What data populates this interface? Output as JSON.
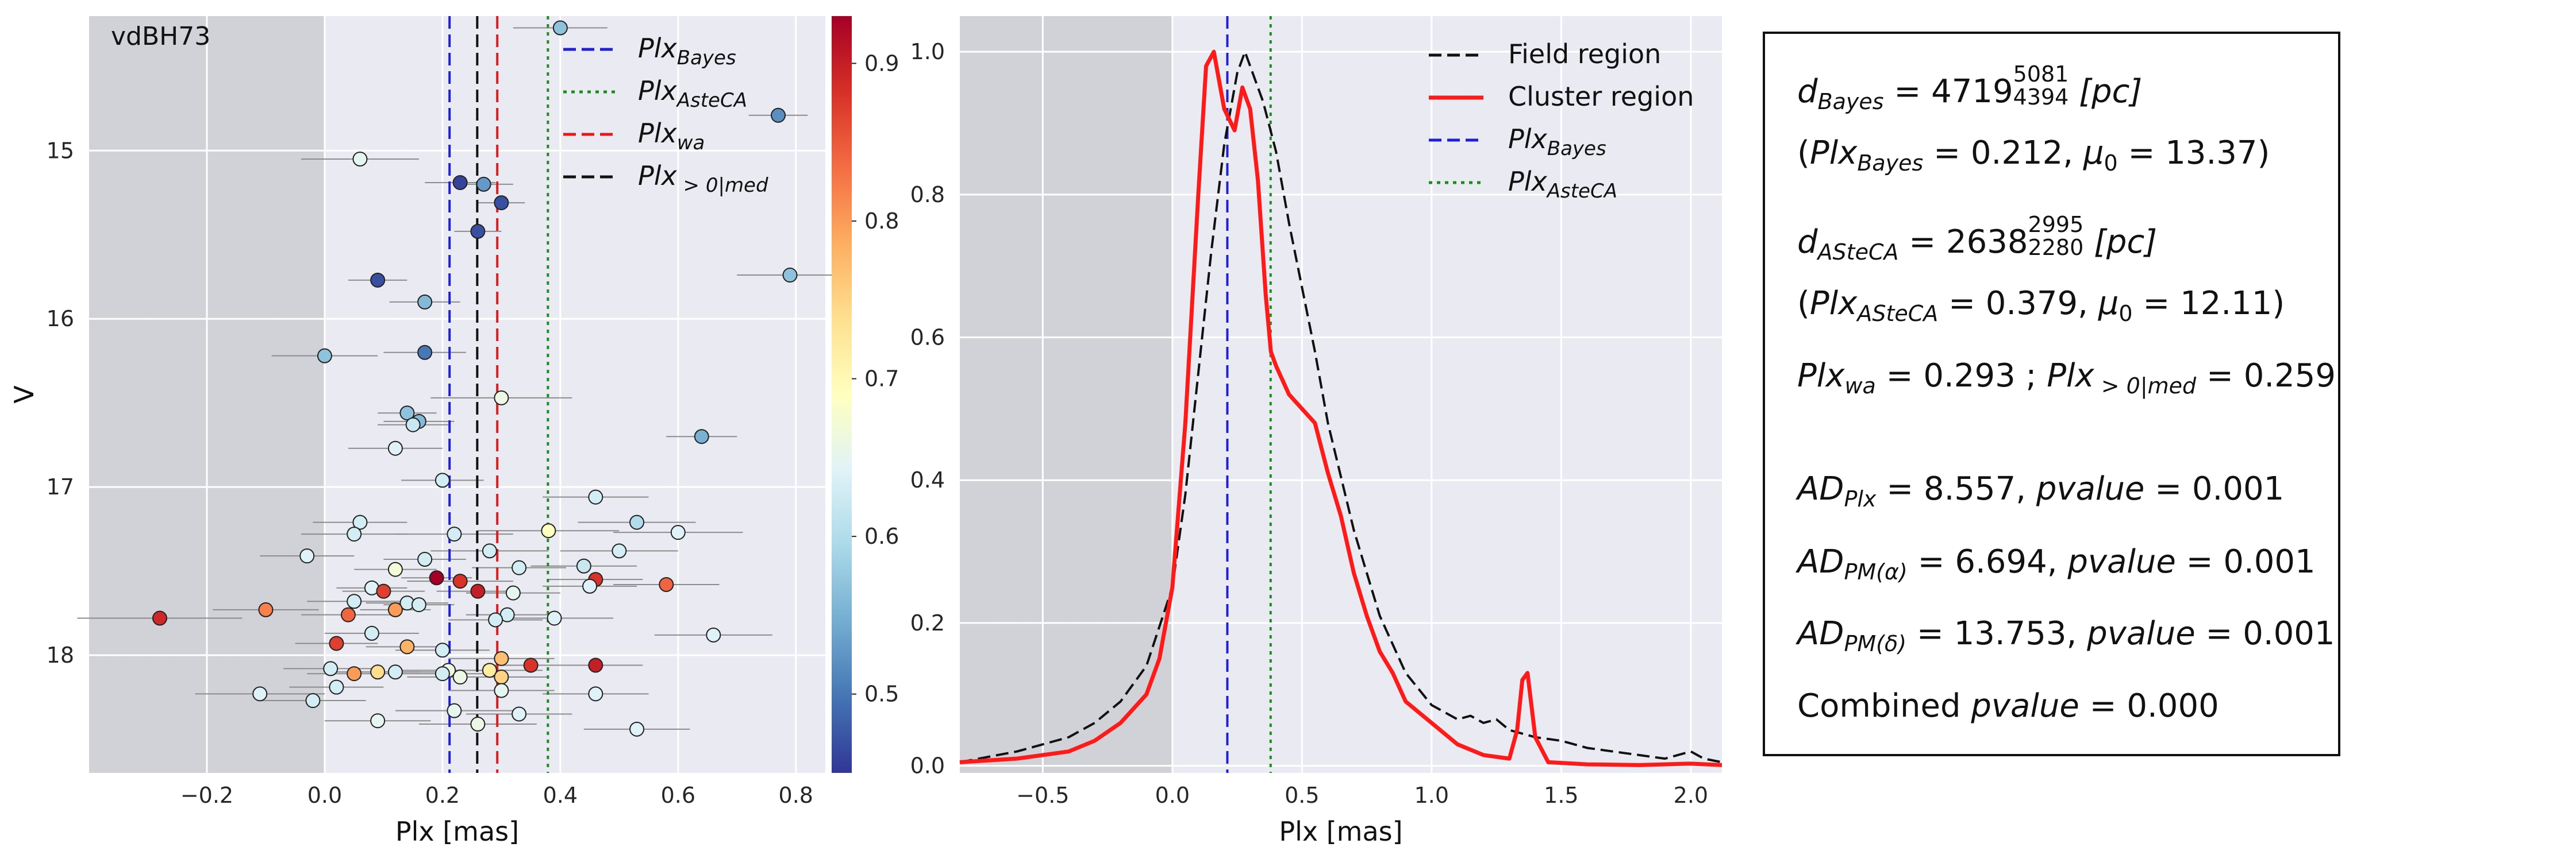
{
  "chart_data": [
    {
      "type": "scatter",
      "title": "",
      "annotation": "vdBH73",
      "xlabel": "Plx [mas]",
      "ylabel": "V",
      "xlim": [
        -0.4,
        0.85
      ],
      "ylim": [
        18.7,
        14.2
      ],
      "y_inverted": true,
      "xticks": [
        -0.2,
        0.0,
        0.2,
        0.4,
        0.6,
        0.8
      ],
      "xtick_labels": [
        "−0.2",
        "0.0",
        "0.2",
        "0.4",
        "0.6",
        "0.8"
      ],
      "yticks": [
        15,
        16,
        17,
        18
      ],
      "ytick_labels": [
        "15",
        "16",
        "17",
        "18"
      ],
      "grid": true,
      "shaded_region_plx_below": 0.0,
      "colorbar": {
        "colormap": "RdYlBu_r",
        "range": [
          0.45,
          0.93
        ],
        "ticks": [
          0.5,
          0.6,
          0.7,
          0.8,
          0.9
        ],
        "tick_labels": [
          "0.5",
          "0.6",
          "0.7",
          "0.8",
          "0.9"
        ]
      },
      "vlines": [
        {
          "name": "Plx_Bayes",
          "x": 0.212,
          "color": "#1f1fd9",
          "style": "dashed"
        },
        {
          "name": "Plx_AsteCA",
          "x": 0.379,
          "color": "#1e8c1e",
          "style": "dotted"
        },
        {
          "name": "Plx_wa",
          "x": 0.293,
          "color": "#e31a1c",
          "style": "dashed"
        },
        {
          "name": "Plx_>0|med",
          "x": 0.259,
          "color": "#111111",
          "style": "dashed"
        }
      ],
      "legend": {
        "placement": "top-right",
        "entries": [
          {
            "base": "Plx",
            "sub": "Bayes",
            "color": "#1f1fd9",
            "style": "dashed"
          },
          {
            "base": "Plx",
            "sub": "AsteCA",
            "color": "#1e8c1e",
            "style": "dotted"
          },
          {
            "base": "Plx",
            "sub": "wa",
            "color": "#e31a1c",
            "style": "dashed"
          },
          {
            "base": "Plx",
            "sub": " > 0|med",
            "color": "#111111",
            "style": "dashed"
          }
        ]
      },
      "points": [
        {
          "x": 0.4,
          "y": 14.27,
          "err": 0.08,
          "c": 0.57
        },
        {
          "x": 0.77,
          "y": 14.79,
          "err": 0.05,
          "c": 0.52
        },
        {
          "x": 0.06,
          "y": 15.05,
          "err": 0.1,
          "c": 0.65
        },
        {
          "x": 0.23,
          "y": 15.19,
          "err": 0.06,
          "c": 0.46
        },
        {
          "x": 0.27,
          "y": 15.2,
          "err": 0.05,
          "c": 0.53
        },
        {
          "x": 0.3,
          "y": 15.31,
          "err": 0.04,
          "c": 0.47
        },
        {
          "x": 0.26,
          "y": 15.48,
          "err": 0.04,
          "c": 0.47
        },
        {
          "x": 0.79,
          "y": 15.74,
          "err": 0.09,
          "c": 0.57
        },
        {
          "x": 0.09,
          "y": 15.77,
          "err": 0.05,
          "c": 0.47
        },
        {
          "x": 0.17,
          "y": 15.9,
          "err": 0.06,
          "c": 0.56
        },
        {
          "x": 0.17,
          "y": 16.2,
          "err": 0.07,
          "c": 0.5
        },
        {
          "x": 0.0,
          "y": 16.22,
          "err": 0.09,
          "c": 0.57
        },
        {
          "x": 0.3,
          "y": 16.47,
          "err": 0.12,
          "c": 0.66
        },
        {
          "x": 0.14,
          "y": 16.56,
          "err": 0.05,
          "c": 0.57
        },
        {
          "x": 0.16,
          "y": 16.61,
          "err": 0.06,
          "c": 0.56
        },
        {
          "x": 0.15,
          "y": 16.63,
          "err": 0.06,
          "c": 0.62
        },
        {
          "x": 0.64,
          "y": 16.7,
          "err": 0.06,
          "c": 0.55
        },
        {
          "x": 0.12,
          "y": 16.77,
          "err": 0.08,
          "c": 0.64
        },
        {
          "x": 0.2,
          "y": 16.96,
          "err": 0.07,
          "c": 0.63
        },
        {
          "x": 0.46,
          "y": 17.06,
          "err": 0.09,
          "c": 0.63
        },
        {
          "x": 0.06,
          "y": 17.21,
          "err": 0.08,
          "c": 0.63
        },
        {
          "x": 0.53,
          "y": 17.21,
          "err": 0.1,
          "c": 0.6
        },
        {
          "x": 0.05,
          "y": 17.28,
          "err": 0.09,
          "c": 0.63
        },
        {
          "x": 0.22,
          "y": 17.28,
          "err": 0.1,
          "c": 0.63
        },
        {
          "x": 0.38,
          "y": 17.26,
          "err": 0.12,
          "c": 0.69
        },
        {
          "x": 0.6,
          "y": 17.27,
          "err": 0.11,
          "c": 0.64
        },
        {
          "x": 0.28,
          "y": 17.38,
          "err": 0.1,
          "c": 0.63
        },
        {
          "x": 0.5,
          "y": 17.38,
          "err": 0.1,
          "c": 0.63
        },
        {
          "x": -0.03,
          "y": 17.41,
          "err": 0.08,
          "c": 0.64
        },
        {
          "x": 0.17,
          "y": 17.43,
          "err": 0.07,
          "c": 0.63
        },
        {
          "x": 0.33,
          "y": 17.48,
          "err": 0.08,
          "c": 0.63
        },
        {
          "x": 0.44,
          "y": 17.47,
          "err": 0.09,
          "c": 0.62
        },
        {
          "x": 0.12,
          "y": 17.49,
          "err": 0.07,
          "c": 0.67
        },
        {
          "x": 0.19,
          "y": 17.54,
          "err": 0.06,
          "c": 0.93
        },
        {
          "x": 0.23,
          "y": 17.56,
          "err": 0.09,
          "c": 0.88
        },
        {
          "x": 0.46,
          "y": 17.55,
          "err": 0.08,
          "c": 0.88
        },
        {
          "x": 0.45,
          "y": 17.59,
          "err": 0.08,
          "c": 0.64
        },
        {
          "x": 0.58,
          "y": 17.58,
          "err": 0.09,
          "c": 0.84
        },
        {
          "x": 0.08,
          "y": 17.6,
          "err": 0.06,
          "c": 0.64
        },
        {
          "x": 0.1,
          "y": 17.62,
          "err": 0.07,
          "c": 0.87
        },
        {
          "x": 0.26,
          "y": 17.62,
          "err": 0.07,
          "c": 0.9
        },
        {
          "x": 0.32,
          "y": 17.63,
          "err": 0.08,
          "c": 0.65
        },
        {
          "x": 0.05,
          "y": 17.68,
          "err": 0.08,
          "c": 0.63
        },
        {
          "x": 0.14,
          "y": 17.69,
          "err": 0.07,
          "c": 0.63
        },
        {
          "x": 0.16,
          "y": 17.7,
          "err": 0.06,
          "c": 0.63
        },
        {
          "x": -0.1,
          "y": 17.73,
          "err": 0.09,
          "c": 0.82
        },
        {
          "x": 0.12,
          "y": 17.73,
          "err": 0.06,
          "c": 0.8
        },
        {
          "x": 0.04,
          "y": 17.76,
          "err": 0.08,
          "c": 0.84
        },
        {
          "x": 0.31,
          "y": 17.76,
          "err": 0.07,
          "c": 0.63
        },
        {
          "x": -0.28,
          "y": 17.78,
          "err": 0.14,
          "c": 0.89
        },
        {
          "x": 0.29,
          "y": 17.79,
          "err": 0.08,
          "c": 0.63
        },
        {
          "x": 0.39,
          "y": 17.78,
          "err": 0.1,
          "c": 0.64
        },
        {
          "x": 0.08,
          "y": 17.87,
          "err": 0.08,
          "c": 0.63
        },
        {
          "x": 0.66,
          "y": 17.88,
          "err": 0.1,
          "c": 0.64
        },
        {
          "x": 0.02,
          "y": 17.93,
          "err": 0.07,
          "c": 0.87
        },
        {
          "x": 0.14,
          "y": 17.95,
          "err": 0.07,
          "c": 0.78
        },
        {
          "x": 0.2,
          "y": 17.97,
          "err": 0.08,
          "c": 0.63
        },
        {
          "x": 0.3,
          "y": 18.02,
          "err": 0.09,
          "c": 0.77
        },
        {
          "x": 0.35,
          "y": 18.06,
          "err": 0.08,
          "c": 0.88
        },
        {
          "x": 0.46,
          "y": 18.06,
          "err": 0.08,
          "c": 0.9
        },
        {
          "x": 0.01,
          "y": 18.08,
          "err": 0.08,
          "c": 0.63
        },
        {
          "x": 0.09,
          "y": 18.1,
          "err": 0.07,
          "c": 0.74
        },
        {
          "x": 0.12,
          "y": 18.1,
          "err": 0.1,
          "c": 0.63
        },
        {
          "x": 0.21,
          "y": 18.09,
          "err": 0.09,
          "c": 0.66
        },
        {
          "x": 0.28,
          "y": 18.09,
          "err": 0.09,
          "c": 0.72
        },
        {
          "x": 0.05,
          "y": 18.11,
          "err": 0.08,
          "c": 0.8
        },
        {
          "x": 0.2,
          "y": 18.11,
          "err": 0.08,
          "c": 0.63
        },
        {
          "x": 0.23,
          "y": 18.13,
          "err": 0.09,
          "c": 0.66
        },
        {
          "x": 0.3,
          "y": 18.13,
          "err": 0.08,
          "c": 0.75
        },
        {
          "x": 0.02,
          "y": 18.19,
          "err": 0.08,
          "c": 0.63
        },
        {
          "x": 0.3,
          "y": 18.21,
          "err": 0.09,
          "c": 0.65
        },
        {
          "x": 0.46,
          "y": 18.23,
          "err": 0.09,
          "c": 0.64
        },
        {
          "x": -0.11,
          "y": 18.23,
          "err": 0.11,
          "c": 0.64
        },
        {
          "x": -0.02,
          "y": 18.27,
          "err": 0.09,
          "c": 0.63
        },
        {
          "x": 0.22,
          "y": 18.33,
          "err": 0.1,
          "c": 0.65
        },
        {
          "x": 0.33,
          "y": 18.35,
          "err": 0.09,
          "c": 0.64
        },
        {
          "x": 0.09,
          "y": 18.39,
          "err": 0.09,
          "c": 0.65
        },
        {
          "x": 0.26,
          "y": 18.41,
          "err": 0.1,
          "c": 0.66
        },
        {
          "x": 0.53,
          "y": 18.44,
          "err": 0.09,
          "c": 0.64
        }
      ]
    },
    {
      "type": "line",
      "title": "",
      "xlabel": "Plx [mas]",
      "ylabel": "",
      "xlim": [
        -0.82,
        2.12
      ],
      "ylim": [
        -0.01,
        1.05
      ],
      "xticks": [
        -0.5,
        0.0,
        0.5,
        1.0,
        1.5,
        2.0
      ],
      "xtick_labels": [
        "−0.5",
        "0.0",
        "0.5",
        "1.0",
        "1.5",
        "2.0"
      ],
      "yticks": [
        0.0,
        0.2,
        0.4,
        0.6,
        0.8,
        1.0
      ],
      "ytick_labels": [
        "0.0",
        "0.2",
        "0.4",
        "0.6",
        "0.8",
        "1.0"
      ],
      "grid": true,
      "shaded_region_plx_below": 0.0,
      "vlines": [
        {
          "name": "Plx_Bayes",
          "x": 0.212,
          "color": "#1f1fd9",
          "style": "dashed"
        },
        {
          "name": "Plx_AsteCA",
          "x": 0.379,
          "color": "#1e8c1e",
          "style": "dotted"
        }
      ],
      "legend": {
        "placement": "top-right",
        "entries": [
          {
            "label": "Field region",
            "color": "#111111",
            "style": "dashed"
          },
          {
            "label": "Cluster region",
            "color": "#ff1a1a",
            "style": "solid"
          },
          {
            "base": "Plx",
            "sub": "Bayes",
            "color": "#1f1fd9",
            "style": "dashed"
          },
          {
            "base": "Plx",
            "sub": "AsteCA",
            "color": "#1e8c1e",
            "style": "dotted"
          }
        ]
      },
      "series": [
        {
          "name": "Field region",
          "color": "#111111",
          "style": "dashed",
          "x": [
            -0.82,
            -0.6,
            -0.4,
            -0.3,
            -0.2,
            -0.1,
            0.0,
            0.05,
            0.1,
            0.15,
            0.2,
            0.25,
            0.28,
            0.3,
            0.35,
            0.4,
            0.45,
            0.5,
            0.55,
            0.6,
            0.7,
            0.8,
            0.9,
            1.0,
            1.05,
            1.1,
            1.15,
            1.2,
            1.25,
            1.3,
            1.4,
            1.5,
            1.6,
            1.7,
            1.8,
            1.9,
            2.0,
            2.05,
            2.12
          ],
          "y": [
            0.005,
            0.02,
            0.04,
            0.06,
            0.09,
            0.14,
            0.25,
            0.38,
            0.55,
            0.72,
            0.87,
            0.97,
            1.0,
            0.98,
            0.93,
            0.86,
            0.76,
            0.67,
            0.58,
            0.48,
            0.33,
            0.21,
            0.13,
            0.085,
            0.075,
            0.065,
            0.07,
            0.06,
            0.065,
            0.05,
            0.04,
            0.035,
            0.025,
            0.02,
            0.015,
            0.01,
            0.02,
            0.01,
            0.005
          ]
        },
        {
          "name": "Cluster region",
          "color": "#ff1a1a",
          "style": "solid",
          "x": [
            -0.82,
            -0.6,
            -0.4,
            -0.3,
            -0.2,
            -0.1,
            -0.05,
            0.0,
            0.05,
            0.1,
            0.13,
            0.16,
            0.2,
            0.24,
            0.27,
            0.3,
            0.33,
            0.36,
            0.38,
            0.4,
            0.45,
            0.5,
            0.55,
            0.6,
            0.65,
            0.7,
            0.75,
            0.8,
            0.85,
            0.9,
            1.0,
            1.1,
            1.2,
            1.3,
            1.33,
            1.35,
            1.37,
            1.4,
            1.45,
            1.6,
            1.8,
            2.0,
            2.12
          ],
          "y": [
            0.005,
            0.01,
            0.02,
            0.035,
            0.06,
            0.1,
            0.15,
            0.25,
            0.48,
            0.8,
            0.98,
            1.0,
            0.92,
            0.89,
            0.95,
            0.92,
            0.82,
            0.66,
            0.58,
            0.56,
            0.52,
            0.5,
            0.48,
            0.41,
            0.35,
            0.27,
            0.21,
            0.16,
            0.13,
            0.09,
            0.06,
            0.03,
            0.015,
            0.01,
            0.05,
            0.12,
            0.13,
            0.04,
            0.005,
            0.002,
            0.001,
            0.003,
            0.001
          ]
        }
      ]
    }
  ],
  "info_panel": {
    "d_bayes": {
      "label": "d",
      "sub": "Bayes",
      "value": "= 4719",
      "sup": "5081",
      "sub2": "4394",
      "unit": "[pc]"
    },
    "plx_bayes_line": {
      "open": "(",
      "label": "Plx",
      "sub": "Bayes",
      "value": "= 0.212,",
      "mu": "μ",
      "mu_sub": "0",
      "mu_value": "= 13.37)"
    },
    "d_asteca": {
      "label": "d",
      "sub": "ASteCA",
      "value": "= 2638",
      "sup": "2995",
      "sub2": "2280",
      "unit": "[pc]"
    },
    "plx_asteca_line": {
      "open": "(",
      "label": "Plx",
      "sub": "ASteCA",
      "value": "= 0.379,",
      "mu": "μ",
      "mu_sub": "0",
      "mu_value": "= 12.11)"
    },
    "plx_wa_line": {
      "label": "Plx",
      "sub": "wa",
      "value": "= 0.293 ;",
      "label2": "Plx",
      "sub2": " > 0|med",
      "value2": "= 0.259"
    },
    "ad_plx": {
      "label": "AD",
      "sub": "Plx",
      "value": "= 8.557,",
      "p": "pvalue",
      "p_value": "= 0.001"
    },
    "ad_pma": {
      "label": "AD",
      "sub": "PM(α)",
      "value": "= 6.694,",
      "p": "pvalue",
      "p_value": "= 0.001"
    },
    "ad_pmd": {
      "label": "AD",
      "sub": "PM(δ)",
      "value": "= 13.753,",
      "p": "pvalue",
      "p_value": "= 0.001"
    },
    "combined": {
      "label": "Combined",
      "p": "pvalue",
      "p_value": "= 0.000"
    }
  }
}
